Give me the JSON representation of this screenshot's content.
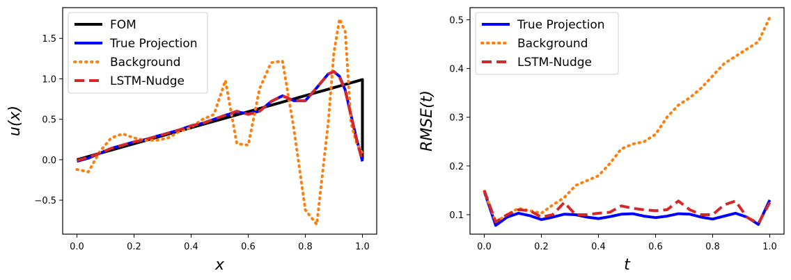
{
  "chart_data": [
    {
      "type": "line",
      "xlabel": "x",
      "ylabel": "u(x)",
      "xlim": [
        -0.05,
        1.05
      ],
      "ylim": [
        -0.92,
        1.88
      ],
      "xticks": [
        "0.0",
        "0.2",
        "0.4",
        "0.6",
        "0.8",
        "1.0"
      ],
      "yticks": [
        "−0.5",
        "0.0",
        "0.5",
        "1.0",
        "1.5"
      ],
      "legend": "top-left",
      "grid": false,
      "x": [
        0.0,
        0.04,
        0.08,
        0.12,
        0.16,
        0.2,
        0.24,
        0.28,
        0.32,
        0.36,
        0.4,
        0.44,
        0.48,
        0.52,
        0.56,
        0.6,
        0.64,
        0.68,
        0.72,
        0.76,
        0.8,
        0.84,
        0.88,
        0.9,
        0.92,
        0.94,
        0.96,
        0.98,
        1.0
      ],
      "series": [
        {
          "name": "FOM",
          "color": "#000000",
          "dash": "solid",
          "x": [
            0.0,
            1.0,
            1.0
          ],
          "values": [
            0.0,
            0.99,
            0.0
          ]
        },
        {
          "name": "True Projection",
          "color": "#0000ff",
          "dash": "solid",
          "values": [
            -0.02,
            0.02,
            0.08,
            0.14,
            0.18,
            0.22,
            0.25,
            0.29,
            0.33,
            0.37,
            0.42,
            0.45,
            0.5,
            0.55,
            0.59,
            0.57,
            0.6,
            0.72,
            0.79,
            0.73,
            0.73,
            0.89,
            1.06,
            1.09,
            1.03,
            0.86,
            0.55,
            0.25,
            -0.02
          ]
        },
        {
          "name": "Background",
          "color": "#ff7f0e",
          "dash": "dotted",
          "values": [
            -0.12,
            -0.15,
            0.1,
            0.27,
            0.32,
            0.27,
            0.24,
            0.24,
            0.27,
            0.35,
            0.4,
            0.5,
            0.56,
            0.98,
            0.2,
            0.18,
            0.88,
            1.2,
            1.22,
            0.38,
            -0.62,
            -0.8,
            0.45,
            1.32,
            1.74,
            1.58,
            0.45,
            0.2,
            0.08
          ]
        },
        {
          "name": "LSTM-Nudge",
          "color": "#d62728",
          "dash": "dashed",
          "values": [
            -0.01,
            0.03,
            0.08,
            0.14,
            0.18,
            0.22,
            0.25,
            0.29,
            0.33,
            0.37,
            0.42,
            0.45,
            0.5,
            0.55,
            0.6,
            0.56,
            0.6,
            0.72,
            0.79,
            0.73,
            0.73,
            0.89,
            1.06,
            1.09,
            1.02,
            0.85,
            0.54,
            0.24,
            -0.01
          ]
        }
      ]
    },
    {
      "type": "line",
      "xlabel": "t",
      "ylabel": "RMSE(t)",
      "xlim": [
        -0.05,
        1.05
      ],
      "ylim": [
        0.06,
        0.525
      ],
      "xticks": [
        "0.0",
        "0.2",
        "0.4",
        "0.6",
        "0.8",
        "1.0"
      ],
      "yticks": [
        "0.1",
        "0.2",
        "0.3",
        "0.4",
        "0.5"
      ],
      "legend": "top-left",
      "grid": false,
      "x": [
        0.0,
        0.04,
        0.08,
        0.12,
        0.16,
        0.2,
        0.24,
        0.28,
        0.32,
        0.36,
        0.4,
        0.44,
        0.48,
        0.52,
        0.56,
        0.6,
        0.64,
        0.68,
        0.72,
        0.76,
        0.8,
        0.84,
        0.88,
        0.92,
        0.96,
        1.0
      ],
      "series": [
        {
          "name": "True Projection",
          "color": "#0000ff",
          "dash": "solid",
          "values": [
            0.148,
            0.078,
            0.095,
            0.103,
            0.098,
            0.09,
            0.095,
            0.101,
            0.1,
            0.095,
            0.092,
            0.096,
            0.101,
            0.102,
            0.097,
            0.094,
            0.097,
            0.102,
            0.101,
            0.095,
            0.091,
            0.097,
            0.103,
            0.095,
            0.08,
            0.13
          ]
        },
        {
          "name": "Background",
          "color": "#ff7f0e",
          "dash": "dotted",
          "values": [
            0.148,
            0.085,
            0.1,
            0.113,
            0.108,
            0.103,
            0.12,
            0.135,
            0.16,
            0.17,
            0.18,
            0.205,
            0.235,
            0.245,
            0.25,
            0.265,
            0.3,
            0.325,
            0.34,
            0.36,
            0.385,
            0.41,
            0.425,
            0.44,
            0.455,
            0.505
          ]
        },
        {
          "name": "LSTM-Nudge",
          "color": "#d62728",
          "dash": "dashed",
          "values": [
            0.15,
            0.085,
            0.1,
            0.11,
            0.108,
            0.095,
            0.1,
            0.125,
            0.1,
            0.1,
            0.103,
            0.105,
            0.118,
            0.113,
            0.11,
            0.108,
            0.11,
            0.128,
            0.11,
            0.1,
            0.1,
            0.12,
            0.128,
            0.095,
            0.082,
            0.125
          ]
        }
      ]
    }
  ]
}
